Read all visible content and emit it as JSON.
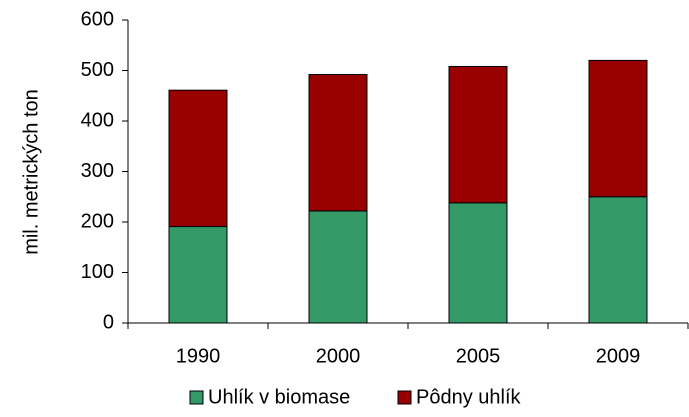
{
  "chart_data": {
    "type": "stacked_bar",
    "y_label": "mil. metrických ton",
    "categories": [
      "1990",
      "2000",
      "2005",
      "2009"
    ],
    "series": [
      {
        "name": "Uhlík v biomase",
        "color": "#339966",
        "values": [
          191,
          222,
          238,
          250
        ]
      },
      {
        "name": "Pôdny uhlík",
        "color": "#990000",
        "values": [
          270,
          270,
          270,
          270
        ]
      }
    ],
    "ylim": [
      0,
      600
    ],
    "yticks": [
      0,
      100,
      200,
      300,
      400,
      500,
      600
    ],
    "grid": false,
    "legend": "bottom"
  }
}
